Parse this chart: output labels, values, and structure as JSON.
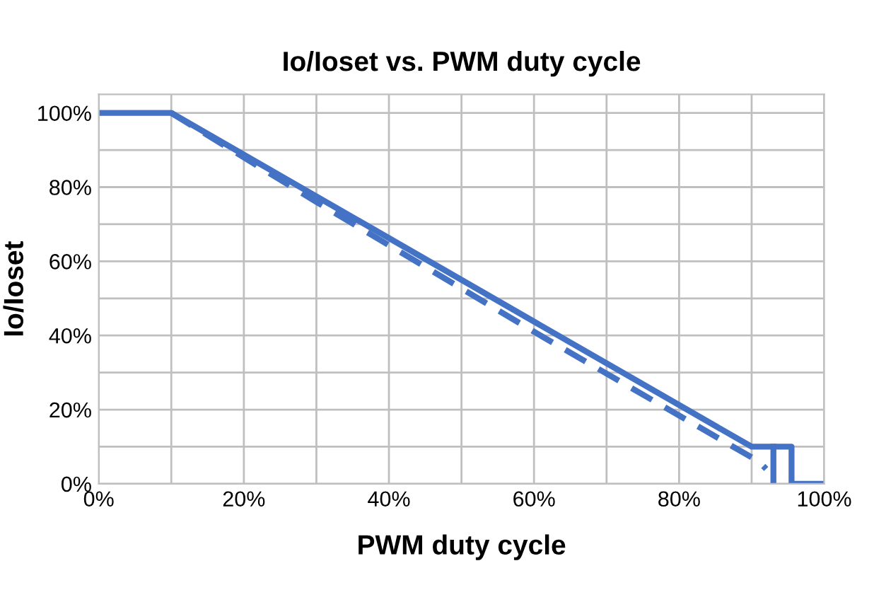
{
  "chart_data": {
    "type": "line",
    "title": "Io/Ioset vs. PWM duty cycle",
    "xlabel": "PWM duty cycle",
    "ylabel": "Io/Ioset",
    "series": [
      {
        "color": "#4472c4",
        "line_style": "solid",
        "x": [
          0,
          10,
          90,
          95.5,
          95.5,
          100
        ],
        "values": [
          100,
          100,
          10,
          10,
          0,
          0
        ]
      },
      {
        "color": "#4472c4",
        "line_style": "solid",
        "x": [
          93,
          93
        ],
        "values": [
          0,
          10
        ]
      },
      {
        "color": "#4472c4",
        "line_style": "dashed",
        "x": [
          10,
          30,
          60,
          91,
          92
        ],
        "values": [
          100,
          76,
          41,
          6,
          4
        ]
      }
    ],
    "xlim": [
      0,
      100
    ],
    "ylim": [
      0,
      105
    ],
    "xticks": [
      {
        "value": 0,
        "label": "0%"
      },
      {
        "value": 20,
        "label": "20%"
      },
      {
        "value": 40,
        "label": "40%"
      },
      {
        "value": 60,
        "label": "60%"
      },
      {
        "value": 80,
        "label": "80%"
      },
      {
        "value": 100,
        "label": "100%"
      }
    ],
    "yticks": [
      {
        "value": 0,
        "label": "0%"
      },
      {
        "value": 20,
        "label": "20%"
      },
      {
        "value": 40,
        "label": "40%"
      },
      {
        "value": 60,
        "label": "60%"
      },
      {
        "value": 80,
        "label": "80%"
      },
      {
        "value": 100,
        "label": "100%"
      }
    ],
    "grid": true,
    "legend": false,
    "marker": "none"
  }
}
